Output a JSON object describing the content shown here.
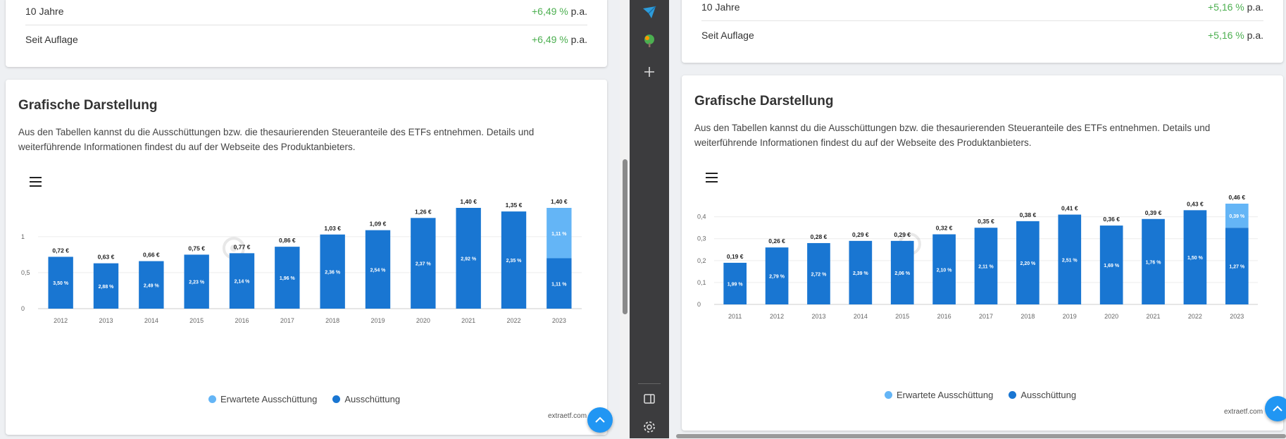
{
  "legend": {
    "expected": "Erwartete Ausschüttung",
    "actual": "Ausschüttung"
  },
  "colors": {
    "actual": "#1976d2",
    "expected": "#64b5f6",
    "positive": "#4caf50",
    "accent": "#2196f3"
  },
  "icons": {
    "menu": "hamburger-menu-icon",
    "scroll_top": "chevron-up-icon",
    "tb_send": "paper-plane-icon",
    "tb_tree": "tree-icon",
    "tb_add": "plus-icon",
    "tb_sidebar": "sidebar-panel-icon",
    "tb_settings": "gear-icon"
  },
  "left": {
    "perf": [
      {
        "label": "10 Jahre",
        "value": "+6,49 %",
        "unit": "p.a."
      },
      {
        "label": "Seit Auflage",
        "value": "+6,49 %",
        "unit": "p.a."
      }
    ],
    "title": "Grafische Darstellung",
    "description": "Aus den Tabellen kannst du die Ausschüttungen bzw. die thesaurierenden Steueranteile des ETFs entnehmen. Details und weiterführende Informationen findest du auf der Webseite des Produktanbieters.",
    "credit": "extraetf.com",
    "chart_data": {
      "type": "bar",
      "stacked": true,
      "ylim": [
        0,
        1.4
      ],
      "yticks": [
        0,
        0.5,
        1
      ],
      "ytick_labels": [
        "0",
        "0,5",
        "1"
      ],
      "categories": [
        "2012",
        "2013",
        "2014",
        "2015",
        "2016",
        "2017",
        "2018",
        "2019",
        "2020",
        "2021",
        "2022",
        "2023"
      ],
      "series": [
        {
          "name": "Ausschüttung",
          "values": [
            0.72,
            0.63,
            0.66,
            0.75,
            0.77,
            0.86,
            1.03,
            1.09,
            1.26,
            1.4,
            1.35,
            0.7
          ],
          "labels": [
            "3,50 %",
            "2,88 %",
            "2,49 %",
            "2,23 %",
            "2,14 %",
            "1,96 %",
            "2,36 %",
            "2,54 %",
            "2,37 %",
            "2,92 %",
            "2,35 %",
            "1,11 %"
          ]
        },
        {
          "name": "Erwartete Ausschüttung",
          "values": [
            0,
            0,
            0,
            0,
            0,
            0,
            0,
            0,
            0,
            0,
            0,
            0.7
          ],
          "labels": [
            "",
            "",
            "",
            "",
            "",
            "",
            "",
            "",
            "",
            "",
            "",
            "1,11 %"
          ]
        }
      ],
      "totals": [
        "0,72 €",
        "0,63 €",
        "0,66 €",
        "0,75 €",
        "0,77 €",
        "0,86 €",
        "1,03 €",
        "1,09 €",
        "1,26 €",
        "1,40 €",
        "1,35 €",
        "1,40 €"
      ],
      "watermark": "extraETF",
      "legend_position": "bottom-center",
      "grid": true
    }
  },
  "right": {
    "perf": [
      {
        "label": "10 Jahre",
        "value": "+5,16 %",
        "unit": "p.a."
      },
      {
        "label": "Seit Auflage",
        "value": "+5,16 %",
        "unit": "p.a."
      }
    ],
    "title": "Grafische Darstellung",
    "description": "Aus den Tabellen kannst du die Ausschüttungen bzw. die thesaurierenden Steueranteile des ETFs entnehmen. Details und weiterführende Informationen findest du auf der Webseite des Produktanbieters.",
    "credit": "extraetf.com",
    "chart_data": {
      "type": "bar",
      "stacked": true,
      "ylim": [
        0,
        0.46
      ],
      "yticks": [
        0,
        0.1,
        0.2,
        0.3,
        0.4
      ],
      "ytick_labels": [
        "0",
        "0,1",
        "0,2",
        "0,3",
        "0,4"
      ],
      "categories": [
        "2011",
        "2012",
        "2013",
        "2014",
        "2015",
        "2016",
        "2017",
        "2018",
        "2019",
        "2020",
        "2021",
        "2022",
        "2023"
      ],
      "series": [
        {
          "name": "Ausschüttung",
          "values": [
            0.19,
            0.26,
            0.28,
            0.29,
            0.29,
            0.32,
            0.35,
            0.38,
            0.41,
            0.36,
            0.39,
            0.43,
            0.35
          ],
          "labels": [
            "1,99 %",
            "2,79 %",
            "2,72 %",
            "2,39 %",
            "2,06 %",
            "2,10 %",
            "2,11 %",
            "2,20 %",
            "2,51 %",
            "1,69 %",
            "1,76 %",
            "1,50 %",
            "1,27 %"
          ]
        },
        {
          "name": "Erwartete Ausschüttung",
          "values": [
            0,
            0,
            0,
            0,
            0,
            0,
            0,
            0,
            0,
            0,
            0,
            0,
            0.11
          ],
          "labels": [
            "",
            "",
            "",
            "",
            "",
            "",
            "",
            "",
            "",
            "",
            "",
            "",
            "0,39 %"
          ]
        }
      ],
      "totals": [
        "0,19 €",
        "0,26 €",
        "0,28 €",
        "0,29 €",
        "0,29 €",
        "0,32 €",
        "0,35 €",
        "0,38 €",
        "0,41 €",
        "0,36 €",
        "0,39 €",
        "0,43 €",
        "0,46 €"
      ],
      "watermark": "extraETF",
      "legend_position": "bottom-center",
      "grid": true
    }
  }
}
